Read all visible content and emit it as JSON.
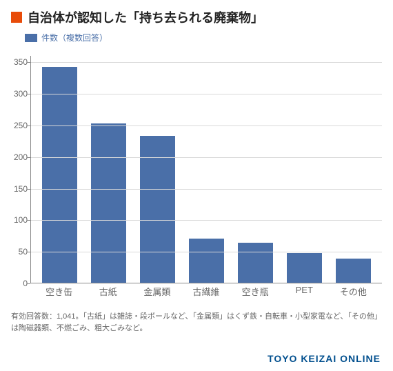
{
  "title": "自治体が認知した「持ち去られる廃棄物」",
  "title_marker_color": "#e84c0a",
  "title_color": "#222222",
  "title_fontsize": 18,
  "legend": {
    "label": "件数（複数回答）",
    "swatch_color": "#4a6fa8",
    "label_color": "#4a6fa8",
    "label_fontsize": 12
  },
  "chart": {
    "type": "bar",
    "categories": [
      "空き缶",
      "古紙",
      "金属類",
      "古繊維",
      "空き瓶",
      "PET",
      "その他"
    ],
    "values": [
      342,
      252,
      232,
      70,
      63,
      47,
      38
    ],
    "bar_color": "#4a6fa8",
    "ylim": [
      0,
      360
    ],
    "yticks": [
      0,
      50,
      100,
      150,
      200,
      250,
      300,
      350
    ],
    "grid_color": "#d9d9d9",
    "axis_color": "#888888",
    "tick_label_color": "#666666",
    "tick_fontsize": 12,
    "xlabel_fontsize": 13,
    "background_color": "#ffffff",
    "bar_width_ratio": 0.72
  },
  "footnote": "有効回答数：1,041。「古紙」は雑誌・段ボールなど、「金属類」はくず鉄・自転車・小型家電など、「その他」は陶磁器類、不燃ごみ、粗大ごみなど。",
  "footnote_color": "#666666",
  "footnote_fontsize": 11,
  "brand": "TOYO KEIZAI ONLINE",
  "brand_color": "#014f8e"
}
